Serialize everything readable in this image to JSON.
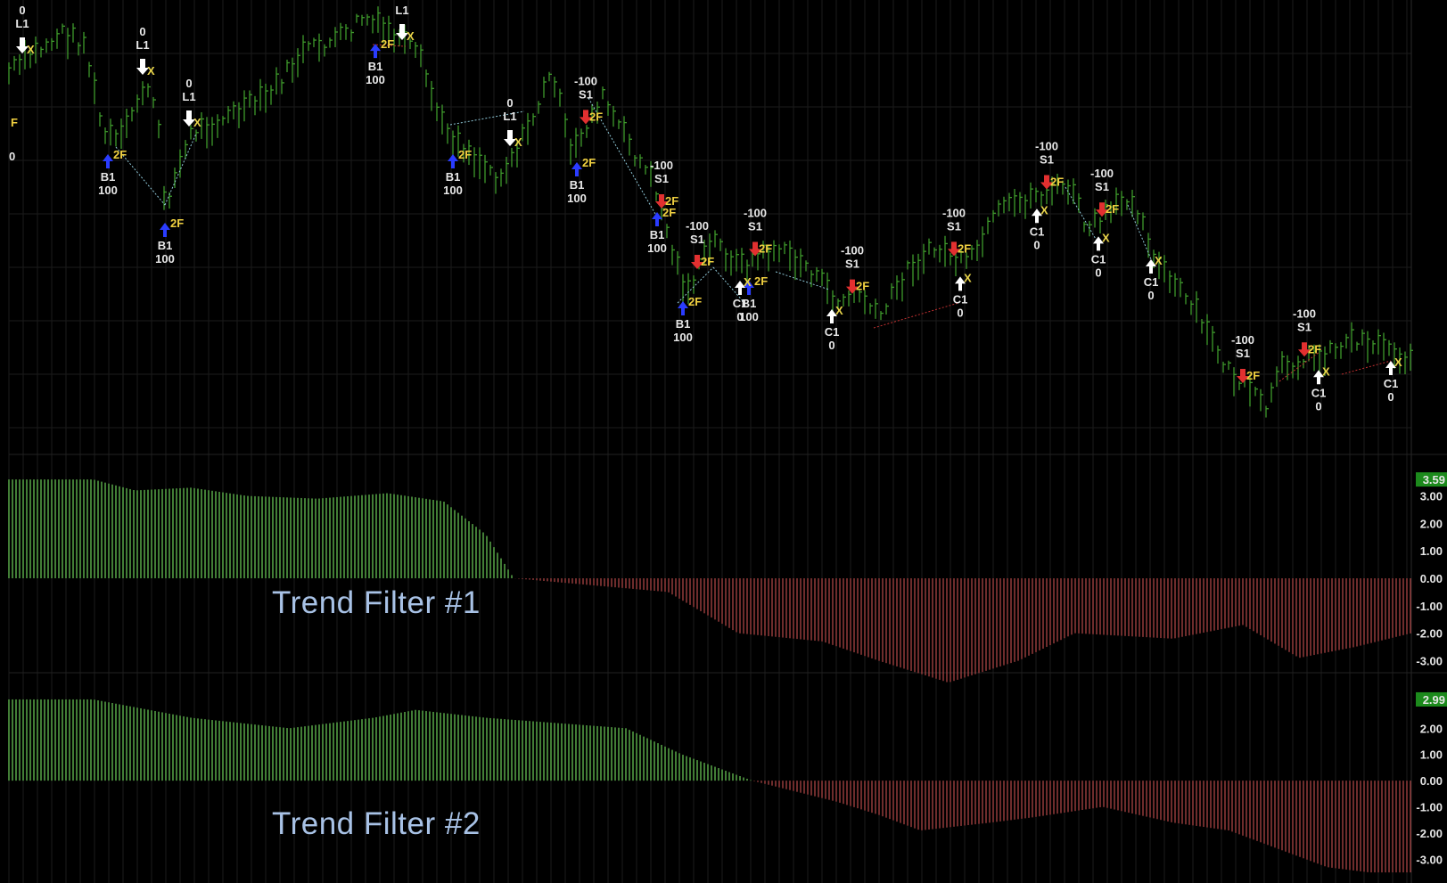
{
  "chart_data": [
    {
      "type": "bar",
      "panel": "price",
      "title": "",
      "xlabel": "",
      "ylabel": "",
      "grid": true,
      "bar_color": "#3f9a2c",
      "annotations": [
        {
          "labels": [
            "0",
            "L1"
          ],
          "marker": "exit-down",
          "x": 25
        },
        {
          "labels": [
            "0",
            "L1"
          ],
          "marker": "exit-down",
          "x": 160
        },
        {
          "labels": [
            "0",
            "L1"
          ],
          "marker": "exit-down",
          "x": 212
        },
        {
          "labels": [
            "L1"
          ],
          "marker": "exit-down",
          "x": 451
        },
        {
          "labels": [
            "0",
            "L1"
          ],
          "marker": "exit-down",
          "x": 572
        },
        {
          "labels": [
            "-100",
            "S1"
          ],
          "marker": "sell",
          "x": 657
        },
        {
          "labels": [
            "-100",
            "S1"
          ],
          "marker": "sell",
          "x": 742
        },
        {
          "labels": [
            "-100",
            "S1"
          ],
          "marker": "sell",
          "x": 782
        },
        {
          "labels": [
            "-100",
            "S1"
          ],
          "marker": "sell",
          "x": 847
        },
        {
          "labels": [
            "-100",
            "S1"
          ],
          "marker": "sell",
          "x": 956
        },
        {
          "labels": [
            "-100",
            "S1"
          ],
          "marker": "sell",
          "x": 1070
        },
        {
          "labels": [
            "-100",
            "S1"
          ],
          "marker": "sell",
          "x": 1174
        },
        {
          "labels": [
            "-100",
            "S1"
          ],
          "marker": "sell",
          "x": 1236
        },
        {
          "labels": [
            "-100",
            "S1"
          ],
          "marker": "sell",
          "x": 1394
        },
        {
          "labels": [
            "-100",
            "S1"
          ],
          "marker": "sell",
          "x": 1463
        },
        {
          "labels": [
            "B1",
            "100"
          ],
          "marker": "buy",
          "x": 121
        },
        {
          "labels": [
            "B1",
            "100"
          ],
          "marker": "buy",
          "x": 185
        },
        {
          "labels": [
            "B1",
            "100"
          ],
          "marker": "buy",
          "x": 421
        },
        {
          "labels": [
            "B1",
            "100"
          ],
          "marker": "buy",
          "x": 508
        },
        {
          "labels": [
            "B1",
            "100"
          ],
          "marker": "buy",
          "x": 647
        },
        {
          "labels": [
            "B1",
            "100"
          ],
          "marker": "buy",
          "x": 737
        },
        {
          "labels": [
            "B1",
            "100"
          ],
          "marker": "buy",
          "x": 766
        },
        {
          "labels": [
            "B1",
            "100"
          ],
          "marker": "buy",
          "x": 840
        },
        {
          "labels": [
            "C1",
            "0"
          ],
          "marker": "cover",
          "x": 830
        },
        {
          "labels": [
            "C1",
            "0"
          ],
          "marker": "cover",
          "x": 933
        },
        {
          "labels": [
            "C1",
            "0"
          ],
          "marker": "cover",
          "x": 1077
        },
        {
          "labels": [
            "C1",
            "0"
          ],
          "marker": "cover",
          "x": 1163
        },
        {
          "labels": [
            "C1",
            "0"
          ],
          "marker": "cover",
          "x": 1232
        },
        {
          "labels": [
            "C1",
            "0"
          ],
          "marker": "cover",
          "x": 1291
        },
        {
          "labels": [
            "C1",
            "0"
          ],
          "marker": "cover",
          "x": 1479
        },
        {
          "labels": [
            "C1",
            "0"
          ],
          "marker": "cover",
          "x": 1560
        }
      ],
      "order_tag": "2F",
      "exit_tag": "X",
      "edge_tags": [
        "F",
        "0"
      ]
    },
    {
      "type": "bar",
      "panel": "indicator-1",
      "title": "Trend Filter #1",
      "ylim": [
        -3.7,
        3.7
      ],
      "yticks": [
        "3.00",
        "2.00",
        "1.00",
        "0.00",
        "-1.00",
        "-2.00",
        "-3.00"
      ],
      "last_value": "3.59",
      "positive_color": "#6fd15a",
      "negative_color": "#b84a4a",
      "curve": [
        [
          0,
          3.6
        ],
        [
          0.06,
          3.6
        ],
        [
          0.09,
          3.2
        ],
        [
          0.13,
          3.3
        ],
        [
          0.17,
          3.0
        ],
        [
          0.22,
          2.9
        ],
        [
          0.27,
          3.1
        ],
        [
          0.31,
          2.8
        ],
        [
          0.34,
          1.6
        ],
        [
          0.36,
          0.0
        ],
        [
          0.47,
          -0.5
        ],
        [
          0.52,
          -2.0
        ],
        [
          0.58,
          -2.3
        ],
        [
          0.62,
          -3.0
        ],
        [
          0.67,
          -3.8
        ],
        [
          0.72,
          -3.0
        ],
        [
          0.76,
          -2.0
        ],
        [
          0.83,
          -2.2
        ],
        [
          0.88,
          -1.7
        ],
        [
          0.92,
          -2.9
        ],
        [
          0.96,
          -2.5
        ],
        [
          1.0,
          -2.0
        ]
      ]
    },
    {
      "type": "bar",
      "panel": "indicator-2",
      "title": "Trend Filter #2",
      "ylim": [
        -3.7,
        3.2
      ],
      "yticks": [
        "2.00",
        "1.00",
        "0.00",
        "-1.00",
        "-2.00",
        "-3.00"
      ],
      "last_value": "2.99",
      "positive_color": "#6fd15a",
      "negative_color": "#b84a4a",
      "curve": [
        [
          0,
          3.1
        ],
        [
          0.06,
          3.1
        ],
        [
          0.13,
          2.4
        ],
        [
          0.2,
          2.0
        ],
        [
          0.26,
          2.4
        ],
        [
          0.29,
          2.7
        ],
        [
          0.34,
          2.4
        ],
        [
          0.44,
          2.0
        ],
        [
          0.48,
          1.0
        ],
        [
          0.53,
          0.0
        ],
        [
          0.59,
          -0.8
        ],
        [
          0.62,
          -1.3
        ],
        [
          0.65,
          -1.9
        ],
        [
          0.7,
          -1.6
        ],
        [
          0.73,
          -1.4
        ],
        [
          0.78,
          -1.0
        ],
        [
          0.83,
          -1.6
        ],
        [
          0.87,
          -1.9
        ],
        [
          0.9,
          -2.5
        ],
        [
          0.94,
          -3.3
        ],
        [
          0.97,
          -3.5
        ],
        [
          1.0,
          -3.5
        ]
      ]
    }
  ]
}
